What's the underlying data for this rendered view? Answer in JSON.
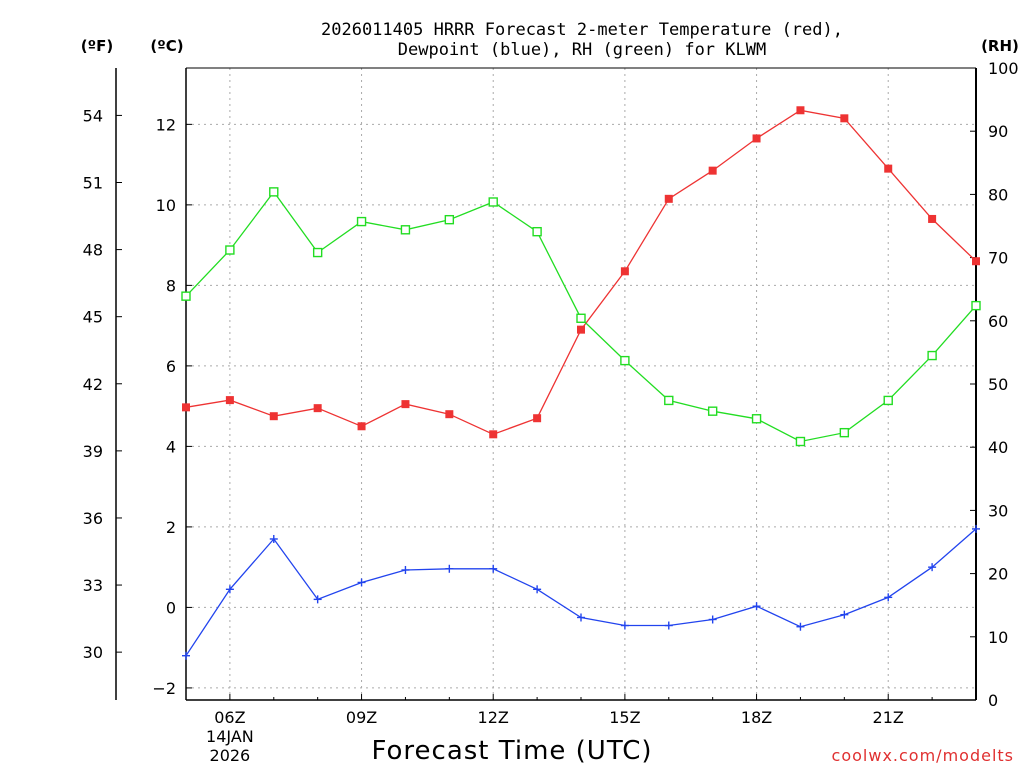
{
  "title_line1": "2026011405 HRRR Forecast 2-meter Temperature (red),",
  "title_line2": "Dewpoint (blue), RH (green) for KLWM",
  "units": {
    "f": "(ºF)",
    "c": "(ºC)",
    "rh": "(RH)"
  },
  "credit": "coolwx.com/modelts",
  "chart_data": {
    "type": "line",
    "title": "2026011405 HRRR Forecast 2-meter Temperature (red), Dewpoint (blue), RH (green) for KLWM",
    "xlabel": "Forecast Time (UTC)",
    "x": [
      5,
      6,
      7,
      8,
      9,
      10,
      11,
      12,
      13,
      14,
      15,
      16,
      17,
      18,
      19,
      20,
      21,
      22,
      23
    ],
    "xlim": [
      5,
      23
    ],
    "x_ticks": [
      {
        "x": 6,
        "label": "06Z",
        "sub": [
          "14JAN",
          "2026"
        ]
      },
      {
        "x": 9,
        "label": "09Z"
      },
      {
        "x": 12,
        "label": "12Z"
      },
      {
        "x": 15,
        "label": "15Z"
      },
      {
        "x": 18,
        "label": "18Z"
      },
      {
        "x": 21,
        "label": "21Z"
      }
    ],
    "y_left_celsius": {
      "ylim": [
        -2.3,
        13.4
      ],
      "ticks": [
        -2,
        0,
        2,
        4,
        6,
        8,
        10,
        12
      ],
      "labels": [
        "−2",
        "0",
        "2",
        "4",
        "6",
        "8",
        "10",
        "12"
      ]
    },
    "y_left_fahrenheit": {
      "ticks": [
        30,
        33,
        36,
        39,
        42,
        45,
        48,
        51,
        54
      ],
      "labels": [
        "30",
        "33",
        "36",
        "39",
        "42",
        "45",
        "48",
        "51",
        "54"
      ]
    },
    "y_right_rh": {
      "ylim": [
        0,
        100
      ],
      "ticks": [
        0,
        10,
        20,
        30,
        40,
        50,
        60,
        70,
        80,
        90,
        100
      ],
      "labels": [
        "0",
        "10",
        "20",
        "30",
        "40",
        "50",
        "60",
        "70",
        "80",
        "90",
        "100"
      ]
    },
    "series": [
      {
        "name": "2-meter Temperature",
        "axis": "celsius",
        "color": "#ee3333",
        "marker": "filled-square",
        "values": [
          4.97,
          5.15,
          4.75,
          4.95,
          4.5,
          5.05,
          4.8,
          4.3,
          4.7,
          6.9,
          8.35,
          10.15,
          10.85,
          11.65,
          12.35,
          12.15,
          10.9,
          9.65,
          8.6
        ]
      },
      {
        "name": "Dewpoint",
        "axis": "celsius",
        "color": "#2244ee",
        "marker": "plus",
        "values": [
          -1.2,
          0.45,
          1.7,
          0.2,
          0.62,
          0.93,
          0.96,
          0.96,
          0.45,
          -0.25,
          -0.45,
          -0.45,
          -0.3,
          0.03,
          -0.48,
          -0.18,
          0.25,
          1.0,
          1.95
        ]
      },
      {
        "name": "Relative Humidity",
        "axis": "rh",
        "color": "#22dd22",
        "marker": "open-square",
        "values": [
          63.9,
          71.2,
          80.4,
          70.8,
          75.7,
          74.4,
          76,
          78.8,
          74.1,
          60.4,
          53.7,
          47.4,
          45.7,
          44.5,
          40.9,
          42.3,
          47.4,
          54.5,
          62.4
        ]
      }
    ]
  }
}
